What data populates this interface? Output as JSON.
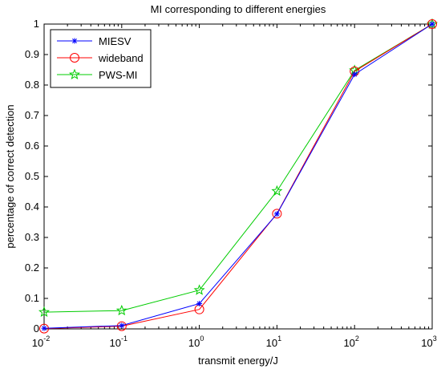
{
  "chart_data": {
    "type": "line",
    "title": "MI corresponding to different energies",
    "xlabel": "transmit energy/J",
    "ylabel": "percentage of correct detection",
    "xscale": "log",
    "xlim": [
      0.01,
      1000
    ],
    "ylim": [
      0,
      1
    ],
    "x": [
      0.01,
      0.1,
      1,
      10,
      100,
      1000
    ],
    "x_tick_labels": [
      {
        "base": "10",
        "exp": "-2"
      },
      {
        "base": "10",
        "exp": "-1"
      },
      {
        "base": "10",
        "exp": "0"
      },
      {
        "base": "10",
        "exp": "1"
      },
      {
        "base": "10",
        "exp": "2"
      },
      {
        "base": "10",
        "exp": "3"
      }
    ],
    "y_ticks": [
      "0",
      "0.1",
      "0.2",
      "0.3",
      "0.4",
      "0.5",
      "0.6",
      "0.7",
      "0.8",
      "0.9",
      "1"
    ],
    "grid": false,
    "legend_position": "top-left",
    "series": [
      {
        "name": "MIESV",
        "marker": "asterisk",
        "color": "#0000ff",
        "values": [
          0.002,
          0.011,
          0.083,
          0.377,
          0.835,
          1.0
        ]
      },
      {
        "name": "wideband",
        "marker": "circle",
        "color": "#ff0000",
        "values": [
          0.001,
          0.009,
          0.064,
          0.378,
          0.845,
          1.0
        ]
      },
      {
        "name": "PWS-MI",
        "marker": "pentagram",
        "color": "#00cc00",
        "values": [
          0.055,
          0.06,
          0.127,
          0.452,
          0.848,
          1.0
        ]
      }
    ]
  }
}
